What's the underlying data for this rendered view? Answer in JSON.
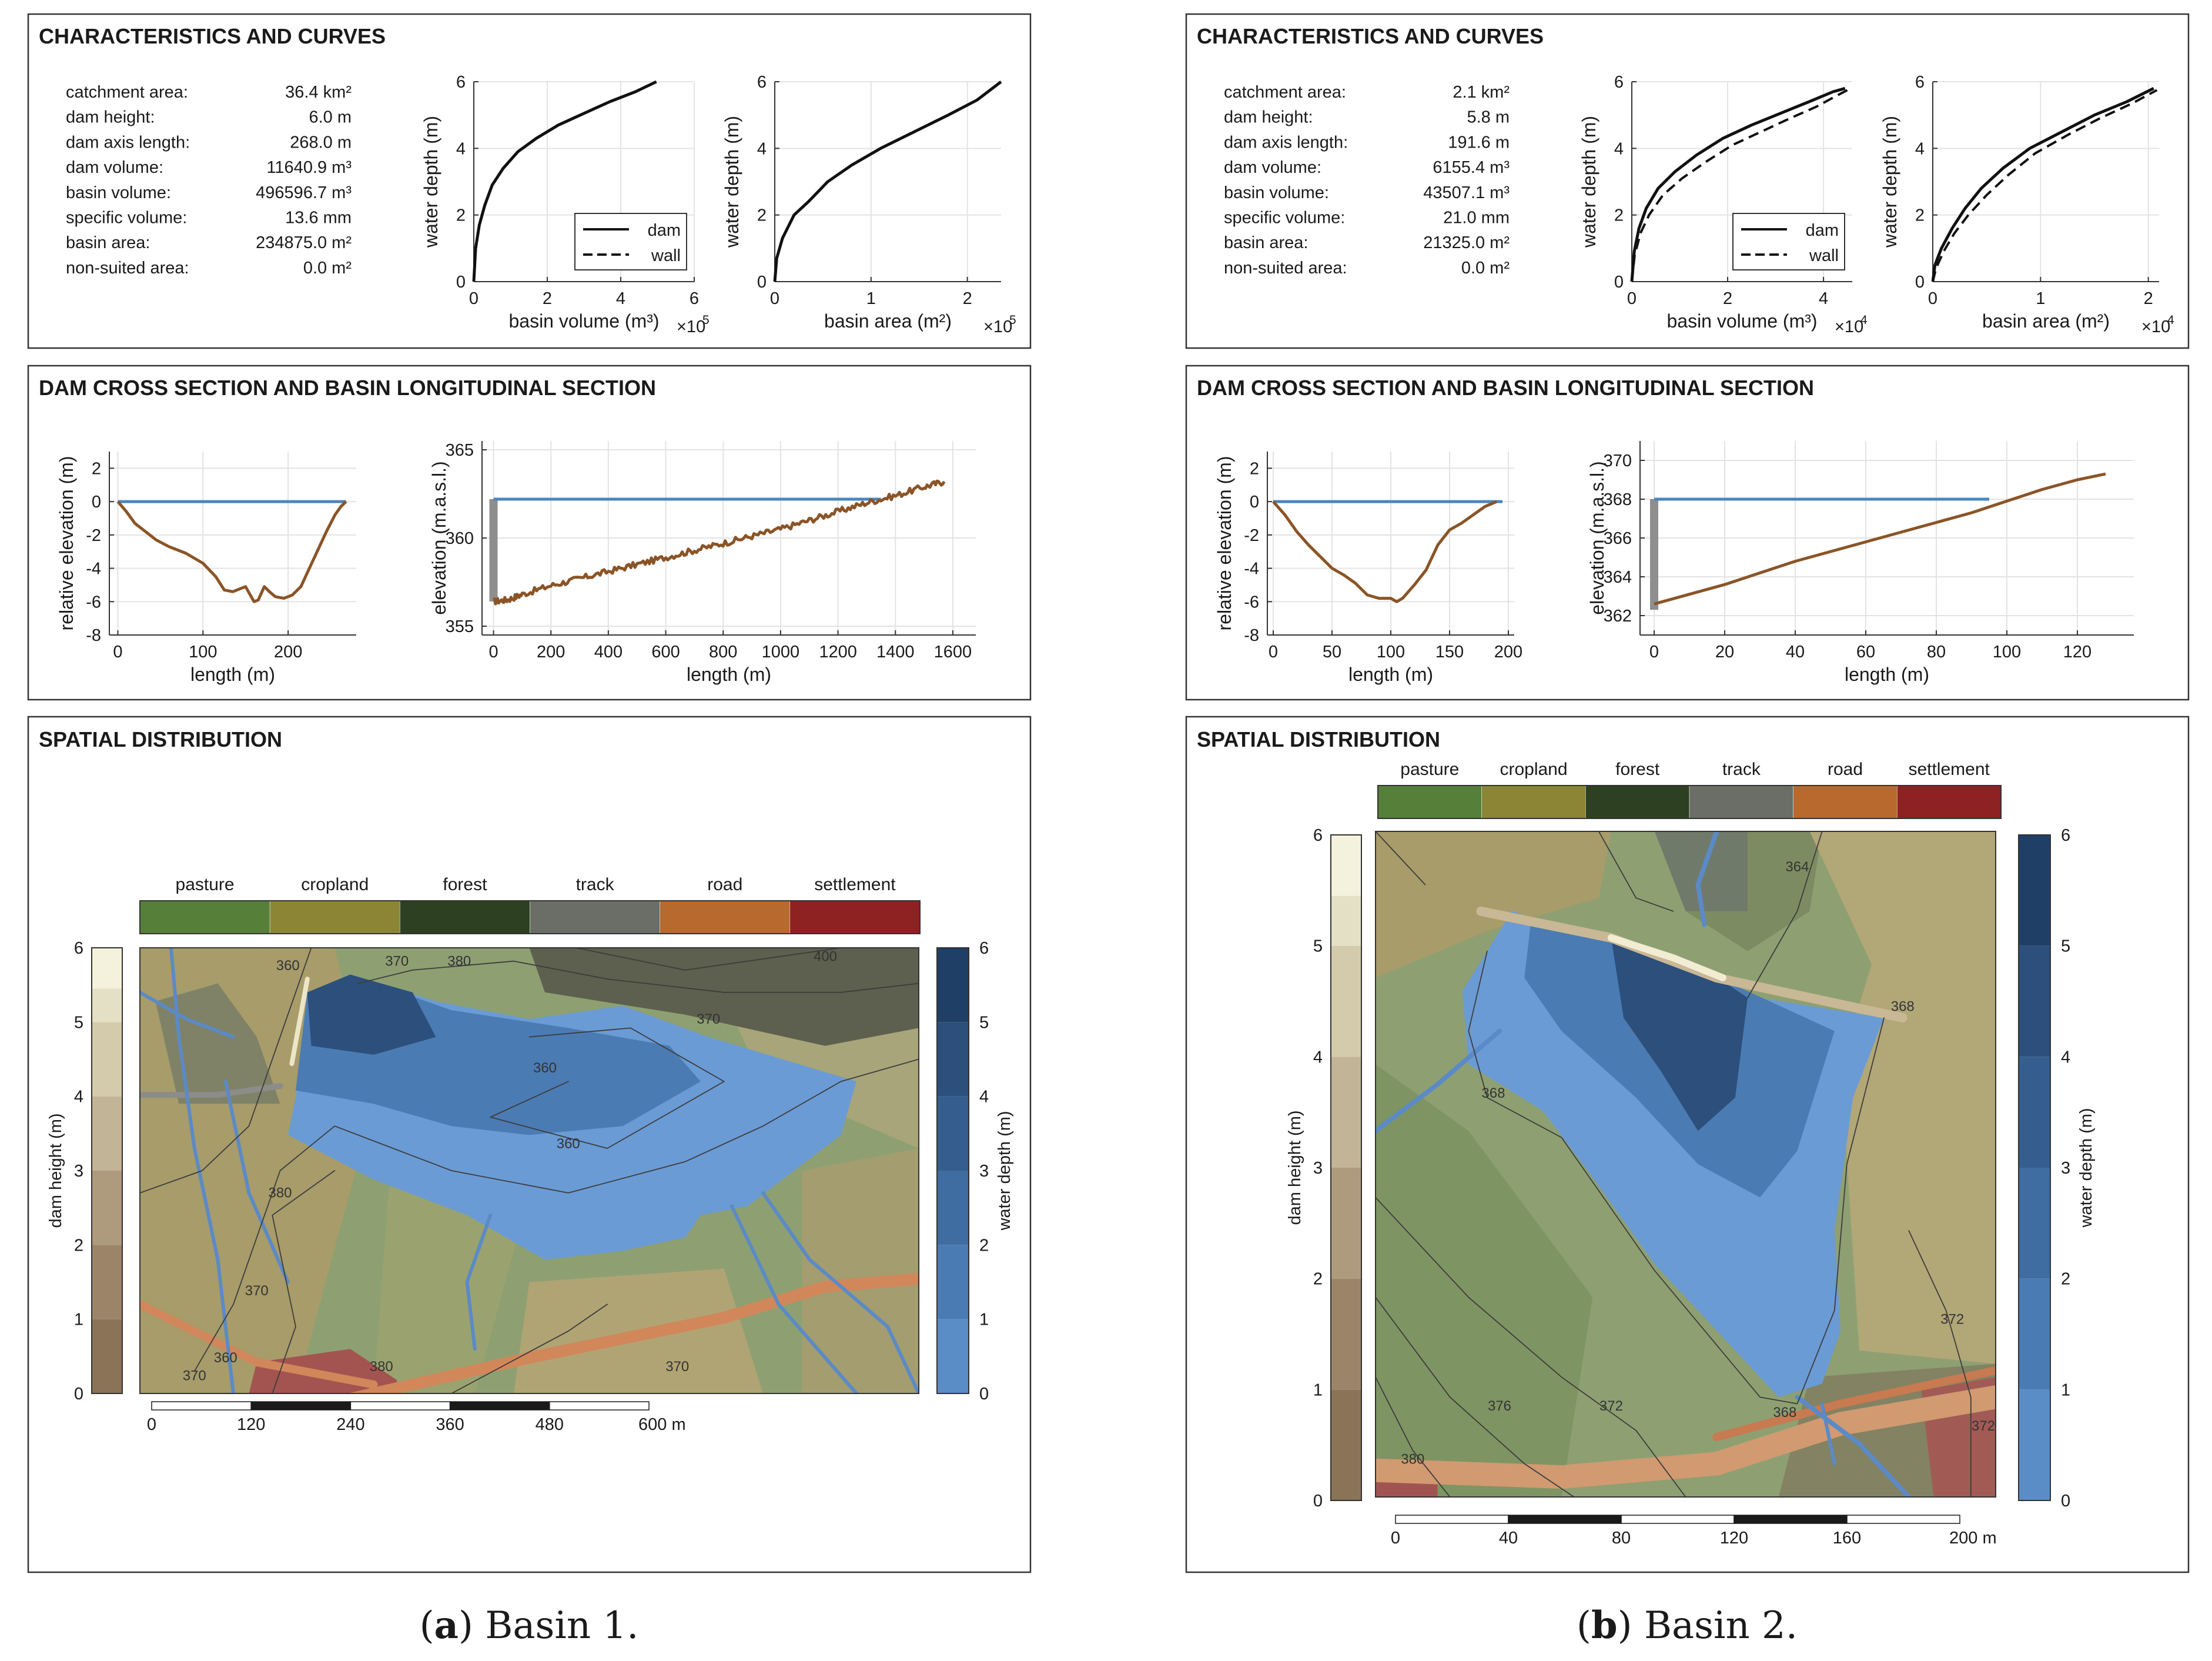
{
  "panels": [
    {
      "caption_letter": "a",
      "caption_text": " Basin 1.",
      "characteristics": {
        "title": "CHARACTERISTICS AND CURVES",
        "rows": [
          {
            "label": "catchment area:",
            "value": "36.4 km²"
          },
          {
            "label": "dam height:",
            "value": "6.0 m"
          },
          {
            "label": "dam axis length:",
            "value": "268.0 m"
          },
          {
            "label": "dam volume:",
            "value": "11640.9 m³"
          },
          {
            "label": "basin volume:",
            "value": "496596.7 m³"
          },
          {
            "label": "specific volume:",
            "value": "13.6 mm"
          },
          {
            "label": "basin area:",
            "value": "234875.0 m²"
          },
          {
            "label": "non-suited area:",
            "value": "0.0 m²"
          }
        ]
      },
      "volume_curve": {
        "xlabel": "basin volume (m³)",
        "ylabel": "water depth (m)",
        "xlim": [
          0,
          6
        ],
        "ylim": [
          0,
          6
        ],
        "xticks": [
          "0",
          "2",
          "4",
          "6"
        ],
        "yticks": [
          "0",
          "2",
          "4",
          "6"
        ],
        "exponent": "×10",
        "exponent_power": "5",
        "legend": [
          "dam",
          "wall"
        ],
        "dam_x": [
          0,
          0.05,
          0.15,
          0.3,
          0.5,
          0.8,
          1.2,
          1.7,
          2.3,
          3.0,
          3.7,
          4.4,
          4.97
        ],
        "dam_y": [
          0,
          1.0,
          1.7,
          2.3,
          2.9,
          3.4,
          3.9,
          4.3,
          4.7,
          5.05,
          5.4,
          5.7,
          6.0
        ],
        "wall_x": [
          0,
          0.05,
          0.15,
          0.3,
          0.5,
          0.8,
          1.2,
          1.7,
          2.3,
          3.0,
          3.7,
          4.4,
          4.97
        ],
        "wall_y": [
          0,
          1.0,
          1.7,
          2.3,
          2.9,
          3.4,
          3.9,
          4.3,
          4.7,
          5.05,
          5.4,
          5.7,
          6.0
        ],
        "show_wall": false
      },
      "area_curve": {
        "xlabel": "basin area (m²)",
        "ylabel": "water depth (m)",
        "xlim": [
          0,
          2.35
        ],
        "ylim": [
          0,
          6
        ],
        "xtick_values": [
          0,
          1,
          2
        ],
        "xticks": [
          "0",
          "1",
          "2"
        ],
        "yticks": [
          "0",
          "2",
          "4",
          "6"
        ],
        "exponent": "×10",
        "exponent_power": "5",
        "dam_x": [
          0,
          0.02,
          0.08,
          0.2,
          0.35,
          0.55,
          0.8,
          1.1,
          1.45,
          1.8,
          2.1,
          2.35
        ],
        "dam_y": [
          0,
          0.7,
          1.3,
          2.0,
          2.4,
          3.0,
          3.5,
          4.0,
          4.5,
          5.0,
          5.45,
          6.0
        ],
        "wall_x": [],
        "wall_y": []
      },
      "cross_section": {
        "title": "DAM CROSS SECTION AND BASIN LONGITUDINAL SECTION",
        "xlabel": "length (m)",
        "ylabel": "relative elevation (m)",
        "xlim": [
          -10,
          280
        ],
        "ylim": [
          -8,
          3
        ],
        "xticks": [
          0,
          100,
          200
        ],
        "yticks": [
          2,
          0,
          -2,
          -4,
          -6,
          -8
        ],
        "ground_x": [
          0,
          10,
          20,
          30,
          45,
          60,
          80,
          100,
          115,
          125,
          135,
          150,
          160,
          165,
          172,
          178,
          185,
          195,
          205,
          215,
          225,
          235,
          245,
          255,
          262,
          268
        ],
        "ground_y": [
          0,
          -0.6,
          -1.3,
          -1.7,
          -2.3,
          -2.7,
          -3.1,
          -3.7,
          -4.5,
          -5.3,
          -5.4,
          -5.1,
          -6.0,
          -5.9,
          -5.1,
          -5.4,
          -5.7,
          -5.8,
          -5.6,
          -5.1,
          -4.0,
          -2.9,
          -1.8,
          -0.8,
          -0.3,
          0
        ],
        "water_x": [
          0,
          268
        ],
        "water_y": [
          0,
          0
        ]
      },
      "long_section": {
        "xlabel": "length (m)",
        "ylabel": "elevation (m.a.s.l.)",
        "xlim": [
          -40,
          1680
        ],
        "ylim": [
          354.5,
          365.5
        ],
        "xticks": [
          0,
          200,
          400,
          600,
          800,
          1000,
          1200,
          1400,
          1600
        ],
        "yticks": [
          355,
          360,
          365
        ],
        "ground_x": [
          0,
          50,
          100,
          200,
          300,
          400,
          500,
          600,
          700,
          800,
          900,
          1000,
          1100,
          1200,
          1300,
          1400,
          1500,
          1570
        ],
        "ground_y": [
          356.4,
          356.5,
          356.8,
          357.3,
          357.7,
          358.1,
          358.5,
          358.9,
          359.3,
          359.7,
          360.1,
          360.5,
          361.0,
          361.5,
          362.0,
          362.4,
          362.9,
          363.2
        ],
        "water_x": [
          0,
          1350
        ],
        "water_y": [
          362.2,
          362.2
        ],
        "wall_bottom": 356.4,
        "wall_top": 362.2
      },
      "spatial": {
        "title": "SPATIAL DISTRIBUTION",
        "landuse_labels": [
          "pasture",
          "cropland",
          "forest",
          "track",
          "road",
          "settlement"
        ],
        "landuse_colors": [
          "#567f3a",
          "#8c8535",
          "#2d4021",
          "#6b6e66",
          "#b8692d",
          "#8e2122"
        ],
        "dam_height_label": "dam height (m)",
        "dam_ticks": [
          "0",
          "1",
          "2",
          "3",
          "4",
          "5",
          "6"
        ],
        "dam_colors": [
          "#8a7357",
          "#9b8468",
          "#ae9b7d",
          "#c2b496",
          "#d4cbad",
          "#e4e0c5",
          "#f4f1dd"
        ],
        "water_depth_label": "water depth (m)",
        "water_ticks": [
          "0",
          "1",
          "2",
          "3",
          "4",
          "5",
          "6"
        ],
        "water_colors": [
          "#6b9bd4",
          "#5a8cc5",
          "#4b7bb3",
          "#3f6ca1",
          "#355e8f",
          "#2c4f7c",
          "#1f3f66"
        ],
        "contour_labels": [
          "360",
          "370",
          "380",
          "400",
          "370",
          "360",
          "380",
          "360",
          "370",
          "370",
          "380",
          "370",
          "360"
        ],
        "scale_ticks": [
          "0",
          "120",
          "240",
          "360",
          "480",
          "600 m"
        ]
      }
    },
    {
      "caption_letter": "b",
      "caption_text": " Basin 2.",
      "characteristics": {
        "title": "CHARACTERISTICS AND CURVES",
        "rows": [
          {
            "label": "catchment area:",
            "value": "2.1 km²"
          },
          {
            "label": "dam height:",
            "value": "5.8 m"
          },
          {
            "label": "dam axis length:",
            "value": "191.6 m"
          },
          {
            "label": "dam volume:",
            "value": "6155.4 m³"
          },
          {
            "label": "basin volume:",
            "value": "43507.1 m³"
          },
          {
            "label": "specific volume:",
            "value": "21.0 mm"
          },
          {
            "label": "basin area:",
            "value": "21325.0 m²"
          },
          {
            "label": "non-suited area:",
            "value": "0.0 m²"
          }
        ]
      },
      "volume_curve": {
        "xlabel": "basin volume (m³)",
        "ylabel": "water depth (m)",
        "xlim": [
          0,
          4.6
        ],
        "ylim": [
          0,
          6
        ],
        "xtick_values": [
          0,
          2,
          4
        ],
        "xticks": [
          "0",
          "2",
          "4"
        ],
        "yticks": [
          "0",
          "2",
          "4",
          "6"
        ],
        "exponent": "×10",
        "exponent_power": "4",
        "legend": [
          "dam",
          "wall"
        ],
        "dam_x": [
          0,
          0.05,
          0.15,
          0.3,
          0.55,
          0.9,
          1.35,
          1.9,
          2.5,
          3.1,
          3.7,
          4.2,
          4.45
        ],
        "dam_y": [
          0,
          0.9,
          1.6,
          2.2,
          2.8,
          3.3,
          3.8,
          4.3,
          4.7,
          5.05,
          5.4,
          5.7,
          5.8
        ],
        "wall_x": [
          0,
          0.06,
          0.18,
          0.36,
          0.65,
          1.05,
          1.55,
          2.1,
          2.7,
          3.3,
          3.85,
          4.3,
          4.5
        ],
        "wall_y": [
          0,
          0.8,
          1.45,
          2.0,
          2.6,
          3.1,
          3.6,
          4.1,
          4.5,
          4.9,
          5.25,
          5.6,
          5.75
        ],
        "show_wall": true
      },
      "area_curve": {
        "xlabel": "basin area (m²)",
        "ylabel": "water depth (m)",
        "xlim": [
          0,
          2.1
        ],
        "ylim": [
          0,
          6
        ],
        "xtick_values": [
          0,
          1,
          2
        ],
        "xticks": [
          "0",
          "1",
          "2"
        ],
        "yticks": [
          "0",
          "2",
          "4",
          "6"
        ],
        "exponent": "×10",
        "exponent_power": "4",
        "dam_x": [
          0,
          0.02,
          0.08,
          0.18,
          0.3,
          0.45,
          0.65,
          0.9,
          1.2,
          1.5,
          1.8,
          2.05
        ],
        "dam_y": [
          0,
          0.5,
          1.0,
          1.6,
          2.2,
          2.8,
          3.4,
          4.0,
          4.5,
          5.0,
          5.4,
          5.8
        ],
        "wall_x": [
          0,
          0.03,
          0.1,
          0.2,
          0.33,
          0.5,
          0.7,
          0.95,
          1.25,
          1.55,
          1.85,
          2.08
        ],
        "wall_y": [
          0,
          0.4,
          0.9,
          1.45,
          2.0,
          2.6,
          3.2,
          3.85,
          4.4,
          4.9,
          5.35,
          5.75
        ]
      },
      "cross_section": {
        "title": "DAM CROSS SECTION AND BASIN LONGITUDINAL SECTION",
        "xlabel": "length (m)",
        "ylabel": "relative elevation (m)",
        "xlim": [
          -5,
          205
        ],
        "ylim": [
          -8,
          3
        ],
        "xticks": [
          0,
          50,
          100,
          150,
          200
        ],
        "yticks": [
          2,
          0,
          -2,
          -4,
          -6,
          -8
        ],
        "ground_x": [
          0,
          10,
          20,
          30,
          40,
          50,
          60,
          70,
          80,
          90,
          100,
          105,
          110,
          120,
          130,
          140,
          150,
          160,
          170,
          180,
          190
        ],
        "ground_y": [
          0,
          -0.8,
          -1.8,
          -2.6,
          -3.3,
          -4.0,
          -4.4,
          -4.9,
          -5.6,
          -5.8,
          -5.8,
          -6.0,
          -5.8,
          -5.0,
          -4.1,
          -2.6,
          -1.7,
          -1.3,
          -0.8,
          -0.3,
          0
        ],
        "water_x": [
          0,
          195
        ],
        "water_y": [
          0,
          0
        ]
      },
      "long_section": {
        "xlabel": "length (m)",
        "ylabel": "elevation (m.a.s.l.)",
        "xlim": [
          -4,
          136
        ],
        "ylim": [
          361,
          371
        ],
        "xticks": [
          0,
          20,
          40,
          60,
          80,
          100,
          120
        ],
        "yticks": [
          362,
          364,
          366,
          368,
          370
        ],
        "ground_x": [
          0,
          10,
          20,
          30,
          40,
          50,
          60,
          70,
          80,
          90,
          100,
          110,
          120,
          128
        ],
        "ground_y": [
          362.6,
          363.1,
          363.6,
          364.2,
          364.8,
          365.3,
          365.8,
          366.3,
          366.8,
          367.3,
          367.9,
          368.5,
          369.0,
          369.3
        ],
        "water_x": [
          0,
          95
        ],
        "water_y": [
          368.0,
          368.0
        ],
        "wall_bottom": 362.3,
        "wall_top": 368.0
      },
      "spatial": {
        "title": "SPATIAL DISTRIBUTION",
        "landuse_labels": [
          "pasture",
          "cropland",
          "forest",
          "track",
          "road",
          "settlement"
        ],
        "landuse_colors": [
          "#567f3a",
          "#8c8535",
          "#2d4021",
          "#6b6e66",
          "#b8692d",
          "#8e2122"
        ],
        "dam_height_label": "dam height (m)",
        "dam_ticks": [
          "0",
          "1",
          "2",
          "3",
          "4",
          "5",
          "6"
        ],
        "dam_colors": [
          "#8a7357",
          "#9b8468",
          "#ae9b7d",
          "#c2b496",
          "#d4cbad",
          "#e4e0c5",
          "#f4f1dd"
        ],
        "water_depth_label": "water depth (m)",
        "water_ticks": [
          "0",
          "1",
          "2",
          "3",
          "4",
          "5",
          "6"
        ],
        "water_colors": [
          "#6b9bd4",
          "#5a8cc5",
          "#4b7bb3",
          "#3f6ca1",
          "#355e8f",
          "#2c4f7c",
          "#1f3f66"
        ],
        "contour_labels": [
          "364",
          "368",
          "368",
          "368",
          "372",
          "376",
          "380",
          "372",
          "372"
        ],
        "scale_ticks": [
          "0",
          "40",
          "80",
          "120",
          "160",
          "200 m"
        ]
      }
    }
  ]
}
